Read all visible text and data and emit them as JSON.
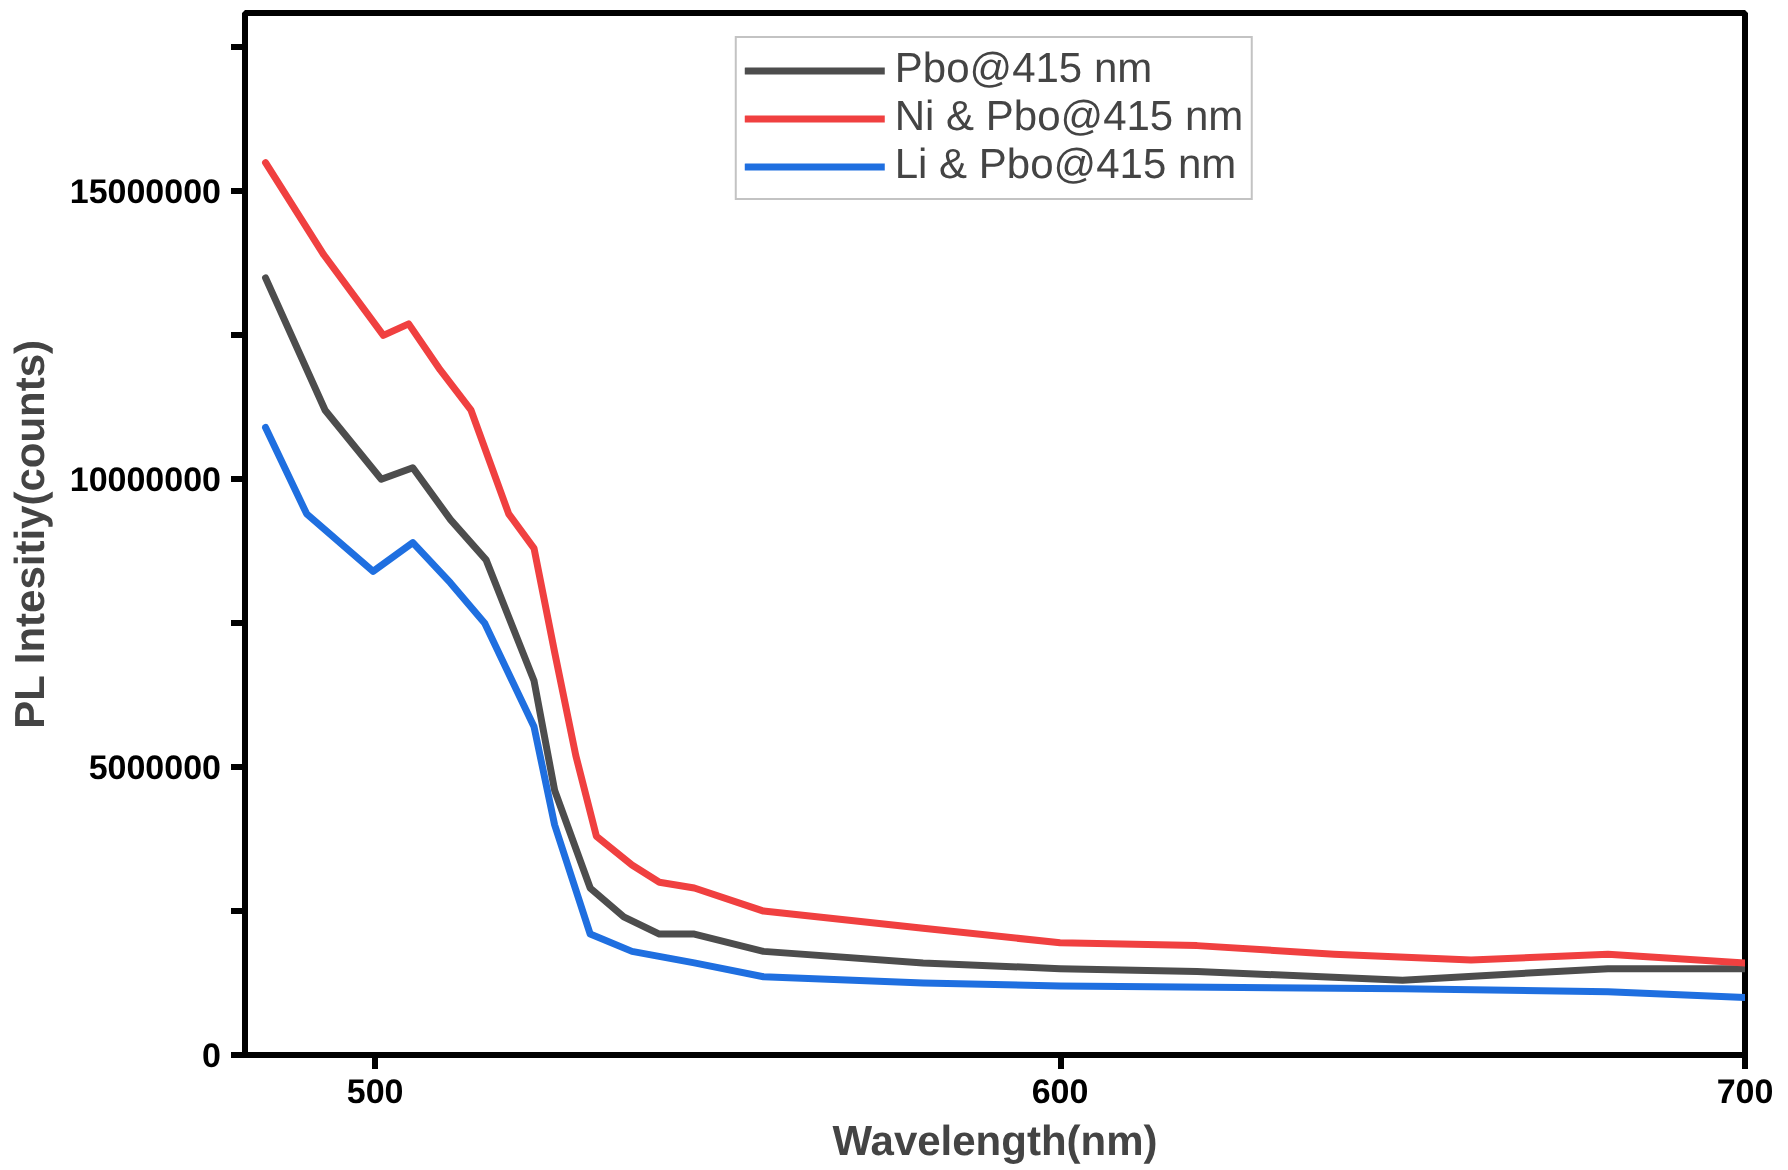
{
  "chart_data": {
    "type": "line",
    "xlabel": "Wavelength(nm)",
    "ylabel": "PL Intesitiy(counts)",
    "xlim": [
      481,
      700
    ],
    "ylim": [
      0,
      18100000
    ],
    "xticks": [
      500,
      600,
      700
    ],
    "yticks": [
      0,
      {
        "value": 2500000,
        "label": null
      },
      5000000,
      {
        "value": 7500000,
        "label": null
      },
      10000000,
      {
        "value": 12500000,
        "label": null
      },
      15000000,
      {
        "value": 17500000,
        "label": null
      }
    ],
    "grid": false,
    "legend": "top",
    "line_style": "solid",
    "marker": "none",
    "series": [
      {
        "name": "Pbo@415 nm",
        "color": "#4d4d4d",
        "x": [
          484,
          492.7,
          500.9,
          505.5,
          511,
          516.2,
          523.2,
          526.2,
          531.4,
          536.3,
          541.5,
          546.6,
          556.7,
          580,
          600,
          620,
          650,
          680,
          700
        ],
        "values": [
          13500000,
          11200000,
          10000000,
          10200000,
          9300000,
          8600000,
          6500000,
          4600000,
          2900000,
          2400000,
          2100000,
          2100000,
          1800000,
          1600000,
          1500000,
          1450000,
          1300000,
          1500000,
          1500000
        ]
      },
      {
        "name": "Ni & Pbo@415 nm",
        "color": "#f04040",
        "x": [
          484,
          492.5,
          501.2,
          504.9,
          509.5,
          514,
          519.5,
          523.2,
          526.2,
          529.3,
          532.3,
          537.5,
          541.5,
          546.6,
          556.7,
          580,
          600,
          620,
          640,
          660,
          680,
          700
        ],
        "values": [
          15500000,
          13900000,
          12500000,
          12700000,
          11900000,
          11200000,
          9400000,
          8800000,
          7000000,
          5200000,
          3800000,
          3300000,
          3000000,
          2900000,
          2500000,
          2200000,
          1950000,
          1900000,
          1750000,
          1650000,
          1750000,
          1600000
        ]
      },
      {
        "name": "Li & Pbo@415 nm",
        "color": "#1f6fe0",
        "x": [
          484,
          490,
          499.7,
          505.5,
          511,
          516,
          523.2,
          526.2,
          531.4,
          537.5,
          546.6,
          556.7,
          580,
          600,
          650,
          680,
          700
        ],
        "values": [
          10900000,
          9400000,
          8400000,
          8900000,
          8200000,
          7500000,
          5700000,
          4000000,
          2100000,
          1800000,
          1600000,
          1360000,
          1250000,
          1200000,
          1150000,
          1100000,
          1000000
        ]
      }
    ]
  }
}
